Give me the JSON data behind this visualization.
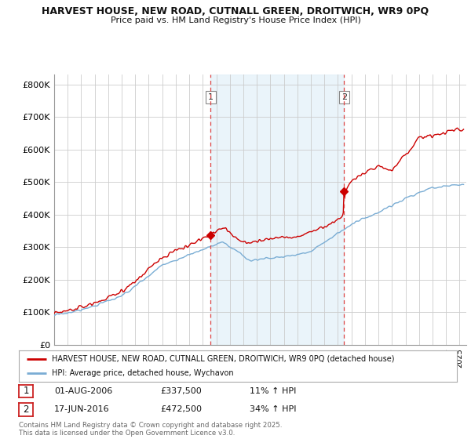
{
  "title_line1": "HARVEST HOUSE, NEW ROAD, CUTNALL GREEN, DROITWICH, WR9 0PQ",
  "title_line2": "Price paid vs. HM Land Registry's House Price Index (HPI)",
  "ylabel_ticks": [
    "£0",
    "£100K",
    "£200K",
    "£300K",
    "£400K",
    "£500K",
    "£600K",
    "£700K",
    "£800K"
  ],
  "ytick_values": [
    0,
    100000,
    200000,
    300000,
    400000,
    500000,
    600000,
    700000,
    800000
  ],
  "ylim": [
    0,
    830000
  ],
  "xlim_start": 1995.0,
  "xlim_end": 2025.5,
  "purchase1_year": 2006.583,
  "purchase1_price": 337500,
  "purchase2_year": 2016.458,
  "purchase2_price": 472500,
  "vline1_x": 2006.583,
  "vline2_x": 2016.458,
  "legend_house": "HARVEST HOUSE, NEW ROAD, CUTNALL GREEN, DROITWICH, WR9 0PQ (detached house)",
  "legend_hpi": "HPI: Average price, detached house, Wychavon",
  "table_row1": [
    "1",
    "01-AUG-2006",
    "£337,500",
    "11% ↑ HPI"
  ],
  "table_row2": [
    "2",
    "17-JUN-2016",
    "£472,500",
    "34% ↑ HPI"
  ],
  "footnote": "Contains HM Land Registry data © Crown copyright and database right 2025.\nThis data is licensed under the Open Government Licence v3.0.",
  "house_color": "#cc0000",
  "hpi_color": "#7aadd4",
  "hpi_fill_color": "#cce0f0",
  "background_color": "#ffffff",
  "grid_color": "#cccccc",
  "vline_color": "#dd4444"
}
